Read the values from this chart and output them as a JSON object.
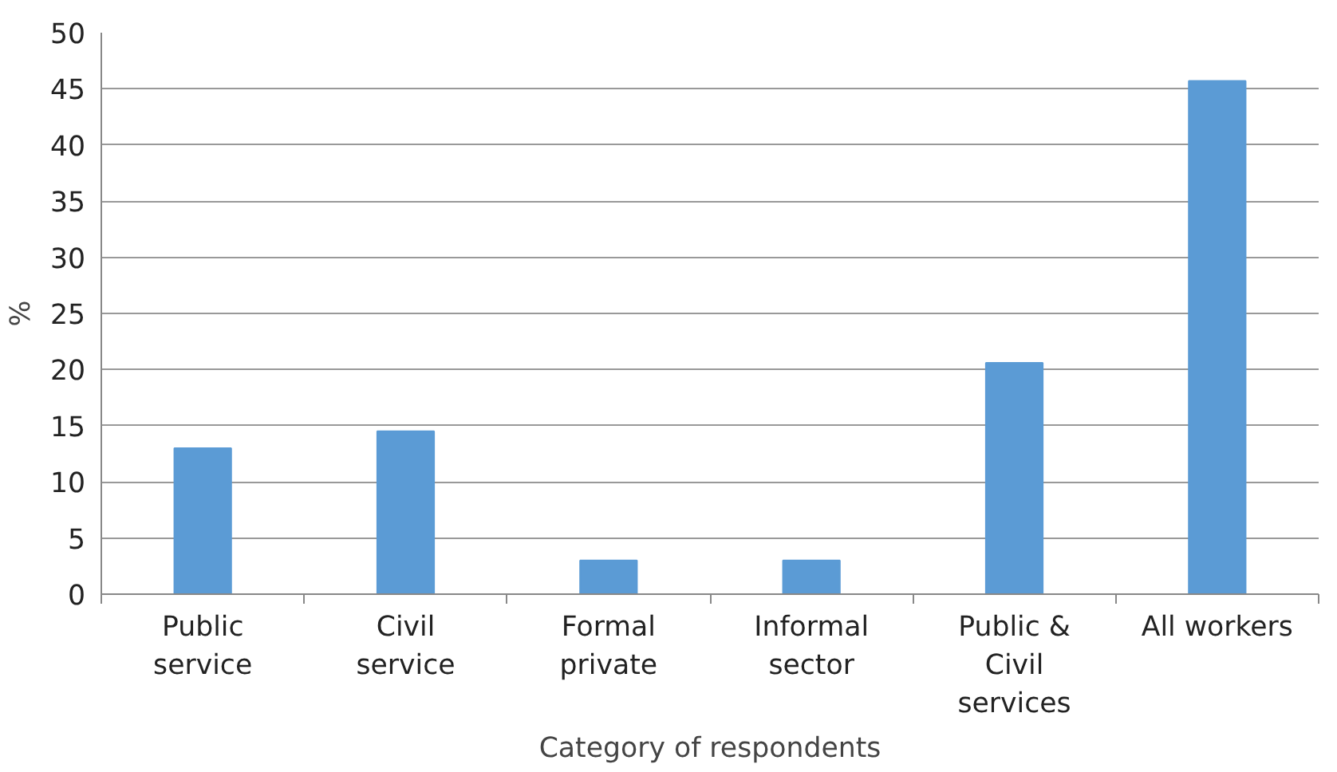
{
  "chart_data": {
    "type": "bar",
    "xlabel": "Category of respondents",
    "ylabel": "%",
    "categories": [
      "Public service",
      "Civil service",
      "Formal private",
      "Informal sector",
      "Public & Civil services",
      "All workers"
    ],
    "values": [
      13.0,
      14.5,
      3.0,
      3.0,
      20.6,
      45.7
    ],
    "color": "#5b9bd5",
    "ylim": [
      0,
      50
    ],
    "yticks": [
      0,
      5,
      10,
      15,
      20,
      25,
      30,
      35,
      40,
      45,
      50
    ],
    "grid": "y"
  }
}
